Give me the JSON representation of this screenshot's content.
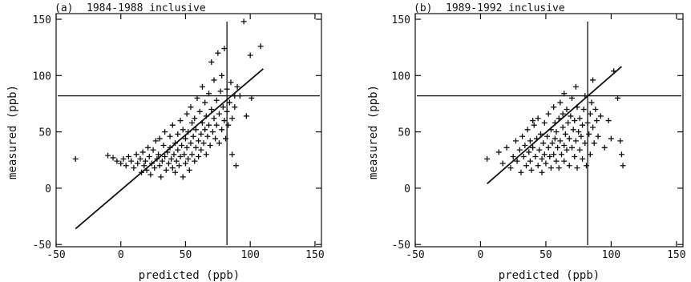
{
  "chart_data": [
    {
      "type": "scatter",
      "panel": "(a)",
      "title": "1984-1988 inclusive",
      "xlabel": "predicted (ppb)",
      "ylabel": "measured (ppb)",
      "xlim": [
        -50,
        155
      ],
      "ylim": [
        -52,
        155
      ],
      "xticks": [
        -50,
        0,
        50,
        100,
        150
      ],
      "yticks": [
        -50,
        0,
        50,
        100,
        150
      ],
      "marker": "plus",
      "threshold": 82,
      "fit_line": {
        "x": [
          -35,
          110
        ],
        "y": [
          -36,
          106
        ]
      },
      "points": [
        [
          -35,
          26
        ],
        [
          -10,
          29
        ],
        [
          -6,
          27
        ],
        [
          -3,
          24
        ],
        [
          0,
          22
        ],
        [
          2,
          26
        ],
        [
          4,
          20
        ],
        [
          6,
          28
        ],
        [
          8,
          24
        ],
        [
          10,
          18
        ],
        [
          12,
          30
        ],
        [
          13,
          22
        ],
        [
          15,
          26
        ],
        [
          16,
          14
        ],
        [
          17,
          32
        ],
        [
          18,
          20
        ],
        [
          19,
          24
        ],
        [
          20,
          16
        ],
        [
          21,
          36
        ],
        [
          22,
          28
        ],
        [
          23,
          12
        ],
        [
          24,
          22
        ],
        [
          25,
          34
        ],
        [
          26,
          18
        ],
        [
          27,
          42
        ],
        [
          28,
          26
        ],
        [
          29,
          30
        ],
        [
          30,
          20
        ],
        [
          30,
          44
        ],
        [
          31,
          10
        ],
        [
          32,
          24
        ],
        [
          33,
          38
        ],
        [
          34,
          28
        ],
        [
          34,
          50
        ],
        [
          35,
          16
        ],
        [
          36,
          32
        ],
        [
          37,
          22
        ],
        [
          38,
          46
        ],
        [
          38,
          36
        ],
        [
          39,
          26
        ],
        [
          40,
          18
        ],
        [
          40,
          56
        ],
        [
          41,
          30
        ],
        [
          42,
          40
        ],
        [
          42,
          14
        ],
        [
          43,
          24
        ],
        [
          44,
          48
        ],
        [
          44,
          34
        ],
        [
          45,
          20
        ],
        [
          46,
          60
        ],
        [
          46,
          28
        ],
        [
          47,
          38
        ],
        [
          48,
          10
        ],
        [
          48,
          52
        ],
        [
          49,
          30
        ],
        [
          50,
          44
        ],
        [
          50,
          22
        ],
        [
          51,
          66
        ],
        [
          51,
          36
        ],
        [
          52,
          26
        ],
        [
          52,
          50
        ],
        [
          53,
          16
        ],
        [
          54,
          40
        ],
        [
          54,
          72
        ],
        [
          55,
          30
        ],
        [
          55,
          58
        ],
        [
          56,
          46
        ],
        [
          57,
          24
        ],
        [
          57,
          62
        ],
        [
          58,
          36
        ],
        [
          58,
          52
        ],
        [
          59,
          80
        ],
        [
          60,
          42
        ],
        [
          60,
          28
        ],
        [
          61,
          68
        ],
        [
          62,
          48
        ],
        [
          62,
          34
        ],
        [
          63,
          58
        ],
        [
          63,
          90
        ],
        [
          64,
          40
        ],
        [
          65,
          76
        ],
        [
          65,
          52
        ],
        [
          66,
          30
        ],
        [
          66,
          64
        ],
        [
          67,
          46
        ],
        [
          68,
          84
        ],
        [
          68,
          56
        ],
        [
          69,
          38
        ],
        [
          70,
          70
        ],
        [
          70,
          112
        ],
        [
          71,
          50
        ],
        [
          72,
          62
        ],
        [
          72,
          96
        ],
        [
          73,
          44
        ],
        [
          74,
          78
        ],
        [
          74,
          56
        ],
        [
          75,
          120
        ],
        [
          76,
          66
        ],
        [
          76,
          40
        ],
        [
          77,
          86
        ],
        [
          78,
          52
        ],
        [
          78,
          100
        ],
        [
          79,
          72
        ],
        [
          80,
          60
        ],
        [
          80,
          124
        ],
        [
          81,
          44
        ],
        [
          82,
          88
        ],
        [
          82,
          68
        ],
        [
          83,
          56
        ],
        [
          84,
          76
        ],
        [
          85,
          94
        ],
        [
          86,
          30
        ],
        [
          86,
          62
        ],
        [
          88,
          72
        ],
        [
          88,
          82
        ],
        [
          89,
          20
        ],
        [
          90,
          90
        ],
        [
          92,
          82
        ],
        [
          95,
          148
        ],
        [
          97,
          64
        ],
        [
          100,
          118
        ],
        [
          101,
          80
        ],
        [
          108,
          126
        ]
      ]
    },
    {
      "type": "scatter",
      "panel": "(b)",
      "title": "1989-1992 inclusive",
      "xlabel": "predicted (ppb)",
      "ylabel": "measured (ppb)",
      "xlim": [
        -50,
        155
      ],
      "ylim": [
        -52,
        155
      ],
      "xticks": [
        -50,
        0,
        50,
        100,
        150
      ],
      "yticks": [
        -50,
        0,
        50,
        100,
        150
      ],
      "marker": "plus",
      "threshold": 82,
      "fit_line": {
        "x": [
          5,
          108
        ],
        "y": [
          4,
          108
        ]
      },
      "points": [
        [
          5,
          26
        ],
        [
          14,
          32
        ],
        [
          17,
          22
        ],
        [
          20,
          36
        ],
        [
          23,
          18
        ],
        [
          25,
          28
        ],
        [
          27,
          42
        ],
        [
          28,
          24
        ],
        [
          30,
          34
        ],
        [
          31,
          14
        ],
        [
          32,
          46
        ],
        [
          33,
          28
        ],
        [
          34,
          38
        ],
        [
          35,
          20
        ],
        [
          36,
          52
        ],
        [
          37,
          32
        ],
        [
          38,
          42
        ],
        [
          38,
          24
        ],
        [
          39,
          16
        ],
        [
          40,
          36
        ],
        [
          41,
          56
        ],
        [
          42,
          28
        ],
        [
          43,
          44
        ],
        [
          44,
          20
        ],
        [
          44,
          62
        ],
        [
          45,
          34
        ],
        [
          46,
          48
        ],
        [
          47,
          26
        ],
        [
          47,
          14
        ],
        [
          48,
          40
        ],
        [
          49,
          58
        ],
        [
          49,
          30
        ],
        [
          50,
          22
        ],
        [
          51,
          46
        ],
        [
          52,
          66
        ],
        [
          52,
          36
        ],
        [
          53,
          28
        ],
        [
          54,
          52
        ],
        [
          54,
          18
        ],
        [
          55,
          40
        ],
        [
          56,
          72
        ],
        [
          56,
          30
        ],
        [
          57,
          58
        ],
        [
          57,
          44
        ],
        [
          58,
          24
        ],
        [
          58,
          50
        ],
        [
          59,
          36
        ],
        [
          60,
          62
        ],
        [
          60,
          18
        ],
        [
          61,
          76
        ],
        [
          61,
          42
        ],
        [
          62,
          30
        ],
        [
          63,
          54
        ],
        [
          63,
          66
        ],
        [
          64,
          38
        ],
        [
          64,
          24
        ],
        [
          65,
          48
        ],
        [
          66,
          70
        ],
        [
          66,
          34
        ],
        [
          67,
          58
        ],
        [
          68,
          20
        ],
        [
          68,
          44
        ],
        [
          69,
          64
        ],
        [
          70,
          36
        ],
        [
          70,
          80
        ],
        [
          71,
          52
        ],
        [
          72,
          28
        ],
        [
          72,
          60
        ],
        [
          73,
          42
        ],
        [
          74,
          72
        ],
        [
          74,
          18
        ],
        [
          75,
          50
        ],
        [
          76,
          34
        ],
        [
          76,
          62
        ],
        [
          77,
          46
        ],
        [
          78,
          26
        ],
        [
          78,
          56
        ],
        [
          79,
          70
        ],
        [
          80,
          40
        ],
        [
          80,
          82
        ],
        [
          81,
          20
        ],
        [
          82,
          58
        ],
        [
          83,
          48
        ],
        [
          84,
          66
        ],
        [
          84,
          30
        ],
        [
          85,
          76
        ],
        [
          86,
          54
        ],
        [
          87,
          40
        ],
        [
          88,
          70
        ],
        [
          89,
          60
        ],
        [
          90,
          46
        ],
        [
          92,
          64
        ],
        [
          95,
          36
        ],
        [
          98,
          60
        ],
        [
          100,
          44
        ],
        [
          102,
          104
        ],
        [
          105,
          80
        ],
        [
          107,
          42
        ],
        [
          108,
          30
        ],
        [
          109,
          20
        ],
        [
          73,
          90
        ],
        [
          86,
          96
        ],
        [
          64,
          84
        ],
        [
          40,
          60
        ]
      ]
    }
  ]
}
